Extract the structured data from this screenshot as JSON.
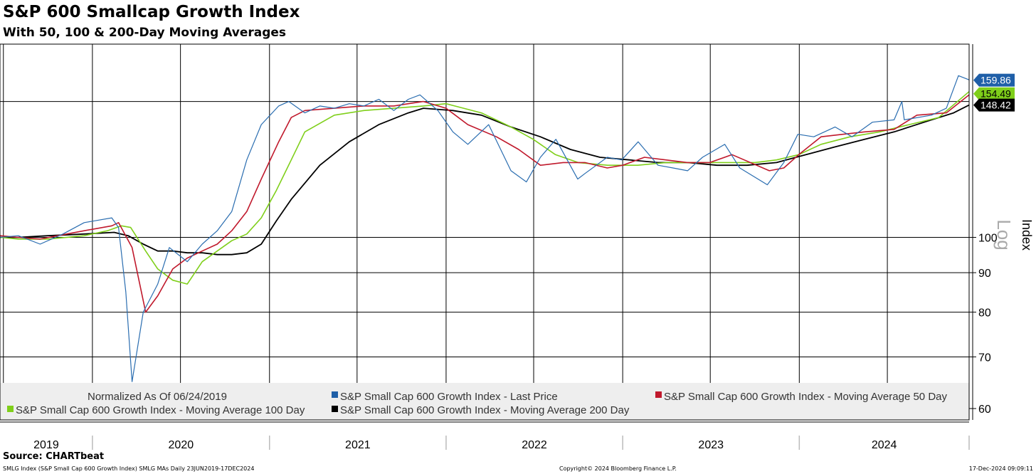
{
  "header": {
    "title": "S&P 600 Smallcap Growth Index",
    "subtitle": "With 50, 100 & 200-Day Moving Averages"
  },
  "footer": {
    "source": "Source: CHARTbeat",
    "ticker": "SMLG Index (S&P Small Cap 600 Growth Index) SMLG MAs  Daily 23JUN2019-17DEC2024",
    "copyright": "Copyright© 2024 Bloomberg Finance L.P.",
    "timestamp": "17-Dec-2024 09:09:11"
  },
  "chart_data": {
    "type": "line",
    "ylabel": "Index",
    "scale_note": "Log",
    "log_scale": true,
    "ylim": [
      58,
      178
    ],
    "xlim": [
      "2019-06-24",
      "2024-12-17"
    ],
    "grid": true,
    "legend": "bottom",
    "normalized_note": "Normalized As Of 06/24/2019",
    "x_tick_labels": [
      "2019",
      "2020",
      "2021",
      "2022",
      "2023",
      "2024"
    ],
    "y_ticks": [
      60,
      70,
      80,
      90,
      100
    ],
    "last_values": [
      {
        "label": "159.86",
        "bg": "#1f5fa8",
        "fg": "#ffffff"
      },
      {
        "label": "154.49",
        "bg": "#7fcf1a",
        "fg": "#000000"
      },
      {
        "label": "148.42",
        "bg": "#000000",
        "fg": "#ffffff"
      }
    ],
    "series": [
      {
        "name": "S&P Small Cap 600 Growth Index - Last Price",
        "color": "#2a6db0",
        "x": [
          "2019-06-24",
          "2019-08-01",
          "2019-09-15",
          "2019-11-01",
          "2019-12-15",
          "2020-02-10",
          "2020-02-24",
          "2020-03-10",
          "2020-03-23",
          "2020-04-15",
          "2020-05-15",
          "2020-06-08",
          "2020-07-15",
          "2020-08-15",
          "2020-09-15",
          "2020-10-15",
          "2020-11-15",
          "2020-12-15",
          "2021-01-20",
          "2021-02-10",
          "2021-03-15",
          "2021-04-15",
          "2021-05-15",
          "2021-06-15",
          "2021-07-15",
          "2021-08-15",
          "2021-09-15",
          "2021-10-15",
          "2021-11-08",
          "2021-12-15",
          "2022-01-15",
          "2022-02-15",
          "2022-03-30",
          "2022-05-15",
          "2022-06-16",
          "2022-07-15",
          "2022-08-16",
          "2022-09-30",
          "2022-10-15",
          "2022-11-30",
          "2022-12-30",
          "2023-02-02",
          "2023-03-15",
          "2023-04-15",
          "2023-05-15",
          "2023-06-15",
          "2023-07-31",
          "2023-08-31",
          "2023-10-27",
          "2023-11-30",
          "2023-12-29",
          "2024-01-31",
          "2024-03-15",
          "2024-04-19",
          "2024-05-31",
          "2024-07-15",
          "2024-07-31",
          "2024-08-05",
          "2024-09-30",
          "2024-10-31",
          "2024-11-25",
          "2024-12-17"
        ],
        "values": [
          100,
          100.5,
          98,
          101,
          104.5,
          106,
          103,
          85,
          65,
          80,
          87,
          97,
          93,
          98,
          102,
          108,
          126,
          140,
          148,
          150,
          145,
          148,
          147,
          149,
          148,
          151,
          146,
          151,
          153,
          146,
          137,
          132,
          140,
          122,
          118,
          127,
          134,
          119,
          121,
          127,
          126,
          133,
          124,
          123,
          122,
          127,
          132,
          123,
          117,
          125,
          136,
          135,
          139,
          135,
          141,
          142,
          150,
          142,
          144,
          147,
          162,
          160
        ]
      },
      {
        "name": "S&P Small Cap 600 Growth Index - Moving Average 50 Day",
        "color": "#c0192c",
        "x": [
          "2019-06-24",
          "2019-08-01",
          "2019-09-15",
          "2019-11-01",
          "2019-12-15",
          "2020-02-10",
          "2020-02-24",
          "2020-03-23",
          "2020-04-20",
          "2020-05-15",
          "2020-06-15",
          "2020-07-15",
          "2020-08-15",
          "2020-09-15",
          "2020-10-15",
          "2020-11-15",
          "2020-12-15",
          "2021-01-20",
          "2021-02-15",
          "2021-03-15",
          "2021-05-15",
          "2021-07-15",
          "2021-09-15",
          "2021-10-15",
          "2021-11-15",
          "2022-01-01",
          "2022-02-15",
          "2022-04-15",
          "2022-05-31",
          "2022-07-15",
          "2022-08-31",
          "2022-10-15",
          "2022-11-30",
          "2023-01-01",
          "2023-02-15",
          "2023-03-31",
          "2023-05-15",
          "2023-06-30",
          "2023-08-15",
          "2023-10-31",
          "2023-11-30",
          "2023-12-31",
          "2024-02-15",
          "2024-03-31",
          "2024-05-15",
          "2024-07-15",
          "2024-08-31",
          "2024-10-31",
          "2024-12-17"
        ],
        "values": [
          100.5,
          100,
          99.5,
          100.8,
          102,
          103.5,
          104.5,
          97,
          80,
          84,
          91,
          94,
          96,
          98,
          102,
          108,
          119,
          133,
          143,
          146,
          147,
          148,
          148,
          149,
          150,
          147,
          140,
          135,
          130,
          124,
          125,
          125,
          123,
          124,
          127,
          126,
          125,
          125,
          128,
          122,
          123,
          128,
          135,
          136,
          137,
          138,
          144,
          145,
          153
        ]
      },
      {
        "name": "S&P Small Cap 600 Growth Index - Moving Average 100 Day",
        "color": "#7fcf1a",
        "x": [
          "2019-06-24",
          "2019-08-01",
          "2019-10-01",
          "2019-12-15",
          "2020-02-01",
          "2020-03-01",
          "2020-03-20",
          "2020-04-20",
          "2020-05-15",
          "2020-06-15",
          "2020-07-15",
          "2020-08-15",
          "2020-09-15",
          "2020-10-15",
          "2020-11-15",
          "2020-12-15",
          "2021-01-15",
          "2021-02-15",
          "2021-03-15",
          "2021-05-15",
          "2021-07-15",
          "2021-09-15",
          "2021-11-15",
          "2022-01-01",
          "2022-03-15",
          "2022-05-15",
          "2022-06-30",
          "2022-08-15",
          "2022-10-01",
          "2022-12-01",
          "2023-02-01",
          "2023-03-31",
          "2023-05-31",
          "2023-07-31",
          "2023-10-01",
          "2023-11-15",
          "2023-12-31",
          "2024-02-15",
          "2024-04-15",
          "2024-06-15",
          "2024-08-15",
          "2024-10-15",
          "2024-12-17"
        ],
        "values": [
          100,
          99.5,
          99.5,
          100.5,
          102,
          103.5,
          103,
          96,
          91,
          88,
          87,
          93,
          96,
          99,
          101,
          106,
          115,
          126,
          137,
          144,
          146,
          147,
          148,
          149,
          145,
          139,
          134,
          128,
          125,
          124,
          124,
          125,
          125,
          125,
          125,
          126,
          128,
          132,
          135,
          137,
          140,
          143,
          154.5
        ]
      },
      {
        "name": "S&P Small Cap 600 Growth Index - Moving Average 200 Day",
        "color": "#000000",
        "x": [
          "2019-06-24",
          "2019-08-01",
          "2019-10-01",
          "2019-12-15",
          "2020-02-15",
          "2020-03-15",
          "2020-04-15",
          "2020-05-15",
          "2020-06-15",
          "2020-07-15",
          "2020-08-15",
          "2020-09-15",
          "2020-10-15",
          "2020-11-15",
          "2020-12-15",
          "2021-01-15",
          "2021-02-15",
          "2021-04-15",
          "2021-06-15",
          "2021-08-15",
          "2021-10-15",
          "2021-11-15",
          "2022-01-15",
          "2022-03-15",
          "2022-05-15",
          "2022-07-15",
          "2022-09-15",
          "2022-11-15",
          "2023-01-15",
          "2023-03-15",
          "2023-05-15",
          "2023-07-15",
          "2023-09-15",
          "2023-11-15",
          "2024-01-15",
          "2024-03-15",
          "2024-05-15",
          "2024-07-15",
          "2024-09-15",
          "2024-11-15",
          "2024-12-17"
        ],
        "values": [
          100,
          100,
          100.5,
          101,
          101.5,
          100.5,
          98,
          96,
          96,
          95.5,
          95.5,
          95,
          95,
          95.5,
          98,
          105,
          112,
          124,
          133,
          140,
          145,
          147,
          146,
          144,
          139,
          135,
          130,
          127,
          126,
          125,
          125,
          124,
          124,
          125,
          128,
          131,
          134,
          137,
          141,
          145,
          148.4
        ]
      }
    ]
  }
}
